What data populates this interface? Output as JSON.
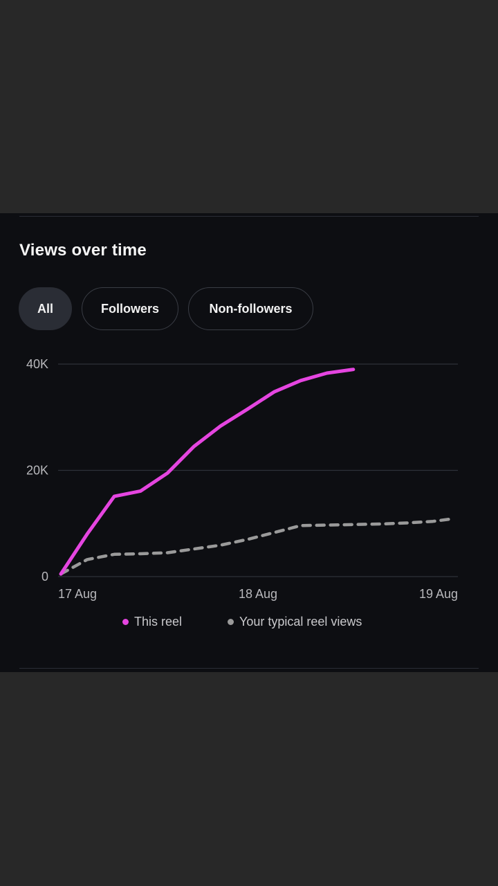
{
  "section": {
    "title": "Views over time"
  },
  "filters": [
    {
      "label": "All",
      "active": true
    },
    {
      "label": "Followers",
      "active": false
    },
    {
      "label": "Non-followers",
      "active": false
    }
  ],
  "colors": {
    "this_reel": "#e545e0",
    "typical": "#9a9a9a",
    "grid": "#2e313a",
    "text": "#c9c9cc"
  },
  "chart_data": {
    "type": "line",
    "title": "Views over time",
    "xlabel": "",
    "ylabel": "",
    "x_tick_labels": [
      "17 Aug",
      "18 Aug",
      "19 Aug"
    ],
    "x_ticks": [
      0,
      24,
      48
    ],
    "xlim": [
      0,
      48
    ],
    "y_tick_labels": [
      "0",
      "20K",
      "40K"
    ],
    "y_ticks": [
      0,
      20000,
      40000
    ],
    "ylim": [
      0,
      40000
    ],
    "grid": true,
    "legend_position": "bottom",
    "series": [
      {
        "name": "This reel",
        "style": "solid",
        "x": [
          0,
          3.2,
          6.5,
          9.7,
          13,
          16.2,
          19.4,
          22.7,
          26,
          29.2,
          32.4,
          35.6
        ],
        "y": [
          500,
          8000,
          15100,
          16100,
          19500,
          24500,
          28300,
          31500,
          34800,
          36900,
          38300,
          39000
        ]
      },
      {
        "name": "Your typical reel views",
        "style": "dashed",
        "x": [
          0,
          3.2,
          6.5,
          9.7,
          13,
          16.2,
          19.4,
          22.7,
          26,
          29.2,
          32.4,
          35.6,
          38.9,
          42.1,
          45.3,
          47.3
        ],
        "y": [
          500,
          3200,
          4200,
          4300,
          4500,
          5200,
          5900,
          7000,
          8300,
          9600,
          9700,
          9800,
          9900,
          10100,
          10400,
          10800
        ]
      }
    ]
  }
}
